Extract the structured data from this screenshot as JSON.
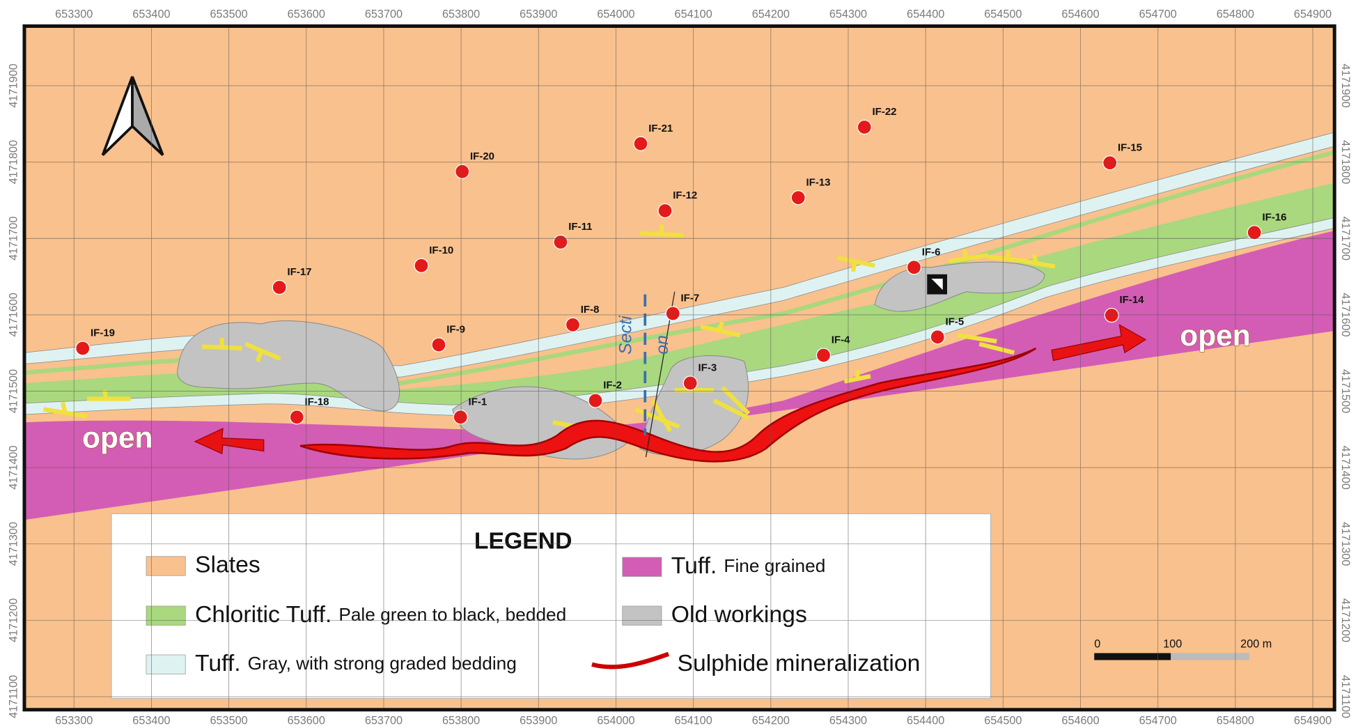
{
  "map": {
    "x_ticks": [
      653300,
      653400,
      653500,
      653600,
      653700,
      653800,
      653900,
      654000,
      654100,
      654200,
      654300,
      654400,
      654500,
      654600,
      654700,
      654800,
      654900
    ],
    "y_ticks": [
      4171100,
      4171200,
      4171300,
      4171400,
      4171500,
      4171600,
      4171700,
      4171800,
      4171900
    ],
    "drill_holes": [
      "IF-19",
      "IF-17",
      "IF-10",
      "IF-20",
      "IF-9",
      "IF-18",
      "IF-1",
      "IF-8",
      "IF-11",
      "IF-2",
      "IF-21",
      "IF-12",
      "IF-7",
      "IF-3",
      "IF-13",
      "IF-4",
      "IF-22",
      "IF-6",
      "IF-5",
      "IF-15",
      "IF-14",
      "IF-16"
    ],
    "annotations": {
      "open_left": "open",
      "open_right": "open",
      "section": [
        "Secti",
        "on"
      ]
    },
    "legend": {
      "title": "LEGEND",
      "items": [
        {
          "name": "Slates"
        },
        {
          "name": "Chloritic Tuff.",
          "description": "Pale green to black, bedded"
        },
        {
          "name": "Tuff.",
          "description": "Gray, with strong graded bedding"
        },
        {
          "name": "Tuff.",
          "description": "Fine grained"
        },
        {
          "name": "Old workings"
        },
        {
          "name": "Sulphide mineralization"
        }
      ]
    },
    "scale_bar": [
      "0",
      "100",
      "200 m"
    ]
  }
}
